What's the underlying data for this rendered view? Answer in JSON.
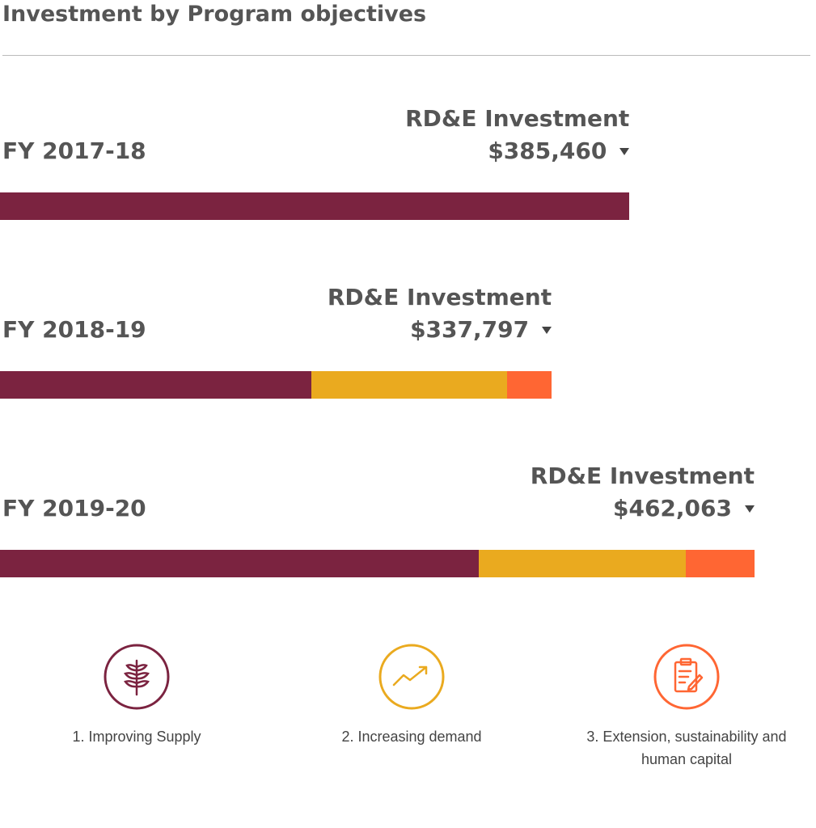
{
  "chart_data": {
    "type": "bar",
    "orientation": "horizontal",
    "stacked": true,
    "title": "Investment by Program objectives",
    "categories": [
      "FY 2017-18",
      "FY 2018-19",
      "FY 2019-20"
    ],
    "series": [
      {
        "name": "1. Improving Supply",
        "color": "#7b2340",
        "values": [
          385460,
          190900,
          293200
        ]
      },
      {
        "name": "2. Increasing demand",
        "color": "#eaaa1f",
        "values": [
          null,
          119700,
          126780
        ]
      },
      {
        "name": "3. Extension, sustainability and human capital",
        "color": "#ff6633",
        "values": [
          null,
          27197,
          42083
        ]
      }
    ],
    "total_caption": "RD&E Investment",
    "totals": [
      385460,
      337797,
      462063
    ],
    "totals_labels": [
      "$385,460",
      "$337,797",
      "$462,063"
    ]
  }
}
